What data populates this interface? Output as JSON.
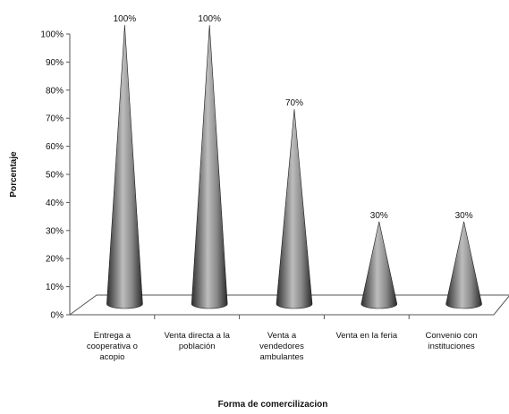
{
  "chart_data": {
    "type": "bar",
    "style": "3d-cone",
    "title": "",
    "xlabel": "Forma de comercilizacion",
    "ylabel": "Porcentaje",
    "ylim": [
      0,
      100
    ],
    "yticks": [
      "0%",
      "10%",
      "20%",
      "30%",
      "40%",
      "50%",
      "60%",
      "70%",
      "80%",
      "90%",
      "100%"
    ],
    "categories": [
      [
        "Entrega a",
        "cooperativa o",
        "acopio"
      ],
      [
        "Venta directa a la",
        "población"
      ],
      [
        "Venta a",
        "vendedores",
        "ambulantes"
      ],
      [
        "Venta en la feria"
      ],
      [
        "Convenio con",
        "instituciones"
      ]
    ],
    "values": [
      100,
      100,
      70,
      30,
      30
    ],
    "data_labels": [
      "100%",
      "100%",
      "70%",
      "30%",
      "30%"
    ],
    "grid": false,
    "legend": "none",
    "colors": {
      "cone_dark": "#2e2e2e",
      "cone_light": "#bdbdbd",
      "floor": "#ffffff",
      "axis": "#555555"
    }
  }
}
